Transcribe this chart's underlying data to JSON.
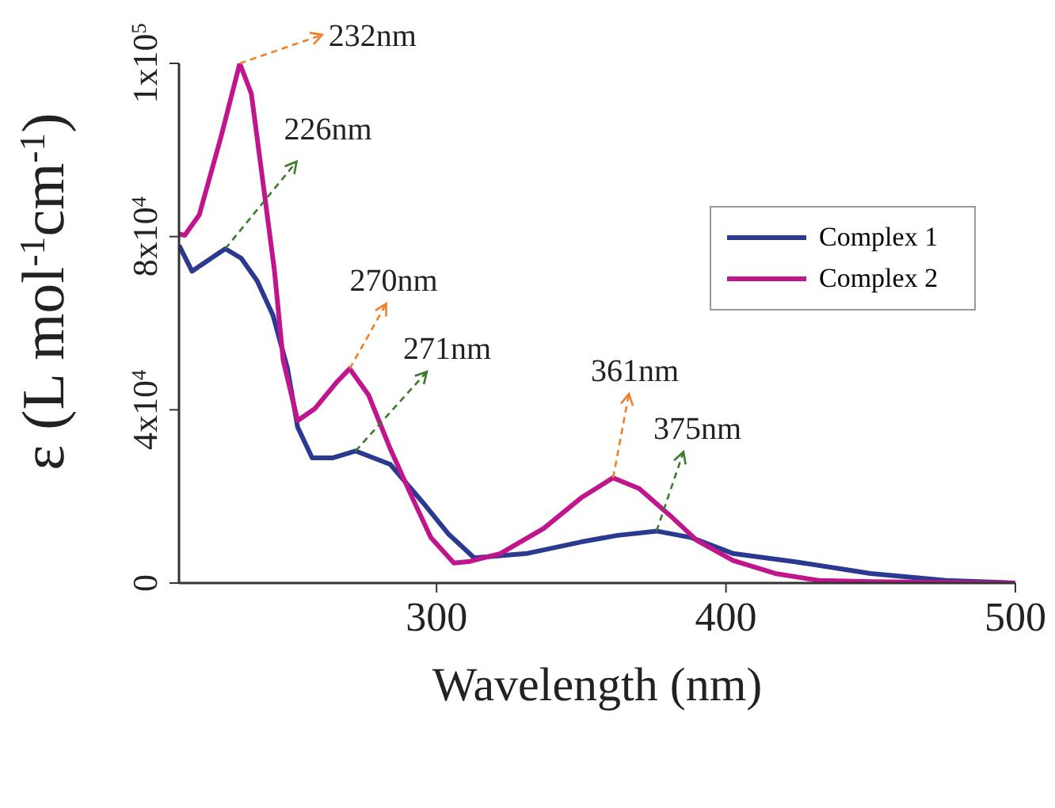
{
  "chart_data": {
    "type": "line",
    "xlabel": "Wavelength (nm)",
    "ylabel": "ε (L mol$^{-1}$cm$^{-1}$)",
    "xlim": [
      211,
      500
    ],
    "xticks": [
      300,
      400,
      500
    ],
    "ylim": [
      0,
      120000
    ],
    "yticks": [
      0,
      {
        "value": 40000,
        "label": "4x10$^{4}$"
      },
      {
        "value": 80000,
        "label": "8x10$^{4}$"
      },
      {
        "value": 120000,
        "label": "1x10$^{5}$"
      }
    ],
    "legend": "top right",
    "marker": "none",
    "line_style": "solid",
    "series": [
      {
        "name": "Complex 1",
        "color": "#2b3990",
        "x": [
          211,
          215.5,
          221,
          227,
          232.5,
          238,
          243.5,
          248.5,
          252,
          257,
          264,
          272,
          284,
          295,
          304,
          313,
          331,
          350,
          362.5,
          376,
          388,
          402.5,
          424,
          450,
          476,
          500
        ],
        "values": [
          78000,
          72000,
          74500,
          77200,
          75000,
          69800,
          61800,
          49500,
          36000,
          28900,
          28900,
          30500,
          27400,
          18800,
          11400,
          5800,
          6800,
          9500,
          11000,
          12000,
          10500,
          6800,
          4900,
          2200,
          600,
          0
        ]
      },
      {
        "name": "Complex 2",
        "color": "#c0158c",
        "x": [
          211,
          213,
          218,
          225.5,
          232,
          236,
          240,
          244,
          247,
          252,
          258,
          265.5,
          270,
          276.5,
          284,
          291,
          298,
          306,
          311.5,
          322,
          337,
          350,
          361,
          370,
          380.5,
          390,
          402.5,
          417,
          432,
          450,
          500
        ],
        "values": [
          80600,
          80300,
          85000,
          103000,
          120000,
          113000,
          92600,
          72000,
          51400,
          37500,
          40300,
          46400,
          49500,
          43400,
          31000,
          20600,
          10500,
          4600,
          5000,
          6800,
          12600,
          19700,
          24300,
          21800,
          15700,
          9800,
          5200,
          2200,
          600,
          300,
          0
        ]
      }
    ],
    "annotations": [
      {
        "text": "232nm",
        "x": 232,
        "y": 120000
      },
      {
        "text": "226nm",
        "x": 227,
        "y": 77200
      },
      {
        "text": "270nm",
        "x": 270,
        "y": 49500
      },
      {
        "text": "271nm",
        "x": 272,
        "y": 30500
      },
      {
        "text": "361nm",
        "x": 361,
        "y": 24300
      },
      {
        "text": "375nm",
        "x": 376,
        "y": 12000
      }
    ]
  }
}
